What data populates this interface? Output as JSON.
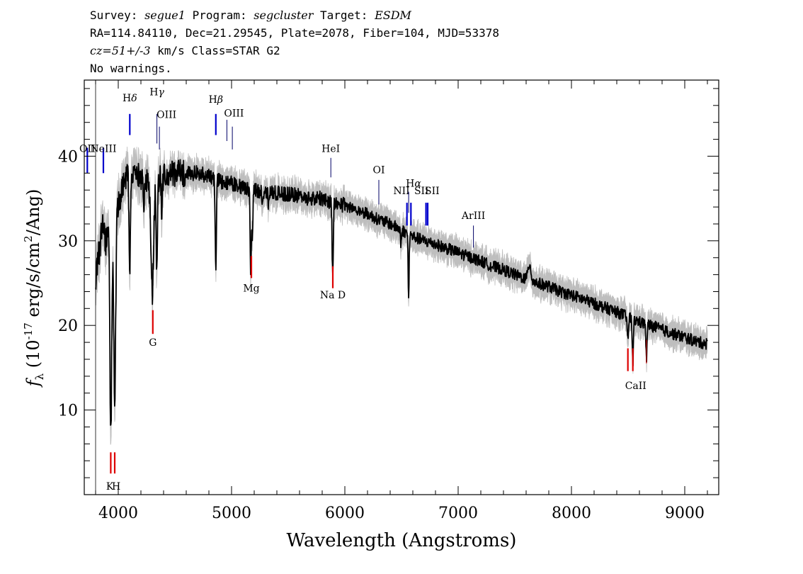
{
  "header": {
    "survey_label": "Survey:",
    "survey": "segue1",
    "program_label": "Program:",
    "program": "segcluster",
    "target_label": "Target:",
    "target": "ESDM",
    "line2": "RA=114.84110, Dec=21.29545, Plate=2078, Fiber=104, MJD=53378",
    "cz": "cz=51+/-3",
    "line3_rest": "km/s Class=STAR G2",
    "line4": "No warnings."
  },
  "colors": {
    "flux": "#000000",
    "error": "#bebebe",
    "emission": "#0000cc",
    "emission_thin": "#000066",
    "absorption": "#dd0000"
  },
  "chart_data": {
    "type": "line",
    "title": "",
    "xlabel": "Wavelength (Angstroms)",
    "ylabel": "f_λ (10^-17 erg/s/cm^2/Ang)",
    "ylabel_parts": {
      "f": "f",
      "sub": "λ",
      "open": "(10",
      "exp": "-17",
      "mid": " erg/s/cm",
      "exp2": "2",
      "close": "/Ang)"
    },
    "xlim": [
      3700,
      9300
    ],
    "ylim": [
      0,
      49
    ],
    "xticks": [
      4000,
      5000,
      6000,
      7000,
      8000,
      9000
    ],
    "yticks": [
      10,
      20,
      30,
      40
    ],
    "grid": false,
    "continuum": [
      [
        3800,
        24
      ],
      [
        3830,
        31
      ],
      [
        3900,
        33
      ],
      [
        3950,
        31
      ],
      [
        4000,
        34
      ],
      [
        4050,
        37
      ],
      [
        4100,
        38
      ],
      [
        4150,
        38
      ],
      [
        4200,
        37.5
      ],
      [
        4300,
        37
      ],
      [
        4400,
        37.5
      ],
      [
        4500,
        38
      ],
      [
        4600,
        38
      ],
      [
        4700,
        38
      ],
      [
        4800,
        37.7
      ],
      [
        4900,
        37
      ],
      [
        5000,
        36.8
      ],
      [
        5100,
        36.2
      ],
      [
        5200,
        36
      ],
      [
        5300,
        35.8
      ],
      [
        5400,
        35.6
      ],
      [
        5500,
        35.5
      ],
      [
        5600,
        35.3
      ],
      [
        5700,
        35
      ],
      [
        5800,
        35
      ],
      [
        5900,
        34.5
      ],
      [
        6000,
        34.2
      ],
      [
        6100,
        33.7
      ],
      [
        6200,
        33.2
      ],
      [
        6300,
        32.5
      ],
      [
        6400,
        32
      ],
      [
        6500,
        31.3
      ],
      [
        6600,
        30.5
      ],
      [
        6700,
        30
      ],
      [
        6800,
        29.6
      ],
      [
        6900,
        29.1
      ],
      [
        7000,
        28.6
      ],
      [
        7100,
        28.1
      ],
      [
        7200,
        27.6
      ],
      [
        7300,
        27
      ],
      [
        7400,
        26.6
      ],
      [
        7500,
        26
      ],
      [
        7600,
        25.5
      ],
      [
        7700,
        25
      ],
      [
        7800,
        24.6
      ],
      [
        7900,
        24
      ],
      [
        8000,
        23.6
      ],
      [
        8100,
        23.1
      ],
      [
        8200,
        22.6
      ],
      [
        8300,
        22.1
      ],
      [
        8400,
        21.6
      ],
      [
        8500,
        21
      ],
      [
        8600,
        20.4
      ],
      [
        8700,
        20
      ],
      [
        8800,
        19.5
      ],
      [
        8900,
        19
      ],
      [
        9000,
        18.6
      ],
      [
        9100,
        18.1
      ],
      [
        9200,
        17.8
      ]
    ],
    "absorption_features": [
      [
        3835,
        2.5,
        9
      ],
      [
        3890,
        3,
        10
      ],
      [
        3934,
        24,
        8
      ],
      [
        3969,
        22,
        8
      ],
      [
        4101,
        11,
        6
      ],
      [
        4227,
        3,
        4
      ],
      [
        4300,
        13,
        12
      ],
      [
        4340,
        11,
        6
      ],
      [
        4384,
        4,
        4
      ],
      [
        4861,
        11,
        5
      ],
      [
        5167,
        7,
        4
      ],
      [
        5173,
        6,
        4
      ],
      [
        5184,
        6,
        4
      ],
      [
        5270,
        2,
        4
      ],
      [
        5328,
        2,
        4
      ],
      [
        5890,
        6,
        4
      ],
      [
        5896,
        5,
        4
      ],
      [
        6495,
        2,
        4
      ],
      [
        6563,
        8,
        4
      ],
      [
        8498,
        3,
        5
      ],
      [
        8542,
        5,
        5
      ],
      [
        8662,
        4,
        5
      ]
    ],
    "emission_features": [
      [
        7630,
        2,
        12
      ]
    ],
    "series": [
      {
        "role": "error",
        "color": "#bebebe"
      },
      {
        "role": "flux",
        "color": "#000000"
      }
    ],
    "line_markers": [
      {
        "label": "OII",
        "wavelength": 3727,
        "kind": "emission",
        "tick": [
          38,
          41
        ],
        "text_y": 40.5,
        "text_align": "center"
      },
      {
        "label": "NeIII",
        "wavelength": 3869,
        "kind": "emission",
        "tick": [
          38,
          41
        ],
        "text_y": 40.5,
        "text_align": "center"
      },
      {
        "label": "Hδ",
        "wavelength": 4102,
        "kind": "emission",
        "tick": [
          42.5,
          45
        ],
        "text_y": 46.5,
        "text_align": "center"
      },
      {
        "label": "Hγ",
        "wavelength": 4341,
        "kind": "emission_thin",
        "tick": [
          41.5,
          45
        ],
        "text_y": 47.2,
        "text_align": "center"
      },
      {
        "label": "OIII",
        "wavelength": 4363,
        "kind": "emission_thin",
        "tick": [
          40.8,
          43.5
        ],
        "text_y": 44.5,
        "text_align": "left"
      },
      {
        "label": "Hβ",
        "wavelength": 4861,
        "kind": "emission",
        "tick": [
          42.5,
          45
        ],
        "text_y": 46.3,
        "text_align": "center"
      },
      {
        "label": "OIII",
        "wavelength": 4959,
        "kind": "emission_thin",
        "tick": [
          41.8,
          44.3
        ],
        "text_y": 44.7,
        "text_align": "left"
      },
      {
        "label": "OIII",
        "wavelength": 5007,
        "kind": "emission_thin",
        "tick": [
          40.8,
          43.5
        ],
        "text_y": null,
        "text_align": "center"
      },
      {
        "label": "HeI",
        "wavelength": 5876,
        "kind": "emission_thin",
        "tick": [
          37.5,
          39.8
        ],
        "text_y": 40.5,
        "text_align": "center"
      },
      {
        "label": "OI",
        "wavelength": 6300,
        "kind": "emission_thin",
        "tick": [
          34.3,
          37.2
        ],
        "text_y": 38.0,
        "text_align": "center"
      },
      {
        "label": "NII",
        "wavelength": 6548,
        "kind": "emission",
        "tick": [
          31.8,
          34.5
        ],
        "text_y": 35.5,
        "text_align": "right"
      },
      {
        "label": "Hα",
        "wavelength": 6563,
        "kind": "emission_thin",
        "tick": [
          33.3,
          35.8
        ],
        "text_y": 36.4,
        "text_align": "left"
      },
      {
        "label": "NII",
        "wavelength": 6583,
        "kind": "emission",
        "tick": [
          31.8,
          34.5
        ],
        "text_y": null,
        "text_align": "center"
      },
      {
        "label": "SII",
        "wavelength": 6716,
        "kind": "emission",
        "tick": [
          31.8,
          34.5
        ],
        "text_y": 35.5,
        "text_align": "right"
      },
      {
        "label": "SII",
        "wavelength": 6731,
        "kind": "emission",
        "tick": [
          31.8,
          34.5
        ],
        "text_y": 35.5,
        "text_align": "left"
      },
      {
        "label": "ArIII",
        "wavelength": 7135,
        "kind": "emission_thin",
        "tick": [
          29.2,
          31.8
        ],
        "text_y": 32.6,
        "text_align": "center"
      },
      {
        "label": "K",
        "wavelength": 3934,
        "kind": "absorption",
        "tick": [
          2.5,
          5.0
        ],
        "text_y": 0.6,
        "text_align": "right"
      },
      {
        "label": "H",
        "wavelength": 3969,
        "kind": "absorption",
        "tick": [
          2.5,
          5.0
        ],
        "text_y": 0.6,
        "text_align": "left"
      },
      {
        "label": "G",
        "wavelength": 4305,
        "kind": "absorption",
        "tick": [
          19.0,
          21.8
        ],
        "text_y": 17.6,
        "text_align": "center"
      },
      {
        "label": "Mg",
        "wavelength": 5175,
        "kind": "absorption",
        "tick": [
          25.6,
          28.2
        ],
        "text_y": 24.0,
        "text_align": "center"
      },
      {
        "label": "Na D",
        "wavelength": 5894,
        "kind": "absorption",
        "tick": [
          24.4,
          27.0
        ],
        "text_y": 23.2,
        "text_align": "center"
      },
      {
        "label": "CaII",
        "wavelength": 8498,
        "kind": "absorption",
        "tick": [
          14.6,
          17.3
        ],
        "text_y": 12.5,
        "text_align": "left"
      },
      {
        "label": "CaII",
        "wavelength": 8542,
        "kind": "absorption",
        "tick": [
          14.6,
          17.3
        ],
        "text_y": null,
        "text_align": "center"
      },
      {
        "label": "CaII",
        "wavelength": 8662,
        "kind": "absorption_faint",
        "tick": [
          15.5,
          18.3
        ],
        "text_y": null,
        "text_align": "center"
      }
    ]
  }
}
